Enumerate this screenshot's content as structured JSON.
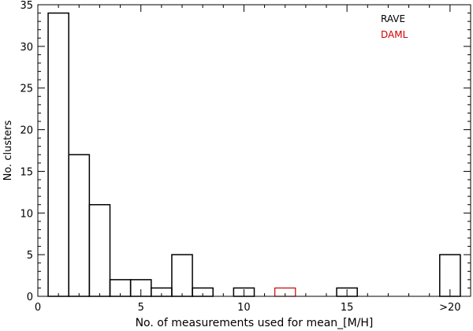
{
  "chart_data": {
    "type": "histogram",
    "title": "",
    "xlabel": "No. of measurements used for mean_[M/H]",
    "ylabel": "No. clusters",
    "xlim": [
      0,
      21
    ],
    "ylim": [
      0,
      35
    ],
    "x_ticks": [
      {
        "value": 0,
        "label": "0"
      },
      {
        "value": 5,
        "label": "5"
      },
      {
        "value": 10,
        "label": "10"
      },
      {
        "value": 15,
        "label": "15"
      },
      {
        "value": 20,
        "label": ">20"
      }
    ],
    "y_ticks": [
      0,
      5,
      10,
      15,
      20,
      25,
      30,
      35
    ],
    "bins": [
      1,
      2,
      3,
      4,
      5,
      6,
      7,
      8,
      9,
      10,
      11,
      12,
      13,
      14,
      15,
      16,
      17,
      18,
      19,
      20
    ],
    "bin_width": 1,
    "grid": false,
    "legend": "top-right",
    "series": [
      {
        "name": "RAVE",
        "color": "#000000",
        "values": [
          34,
          17,
          11,
          2,
          2,
          1,
          5,
          1,
          0,
          1,
          0,
          0,
          0,
          0,
          1,
          0,
          0,
          0,
          0,
          5
        ]
      },
      {
        "name": "DAML",
        "color": "#cc0000",
        "values": [
          0,
          0,
          0,
          0,
          0,
          0,
          0,
          0,
          0,
          0,
          0,
          1,
          0,
          0,
          0,
          0,
          0,
          0,
          0,
          0
        ]
      }
    ]
  }
}
